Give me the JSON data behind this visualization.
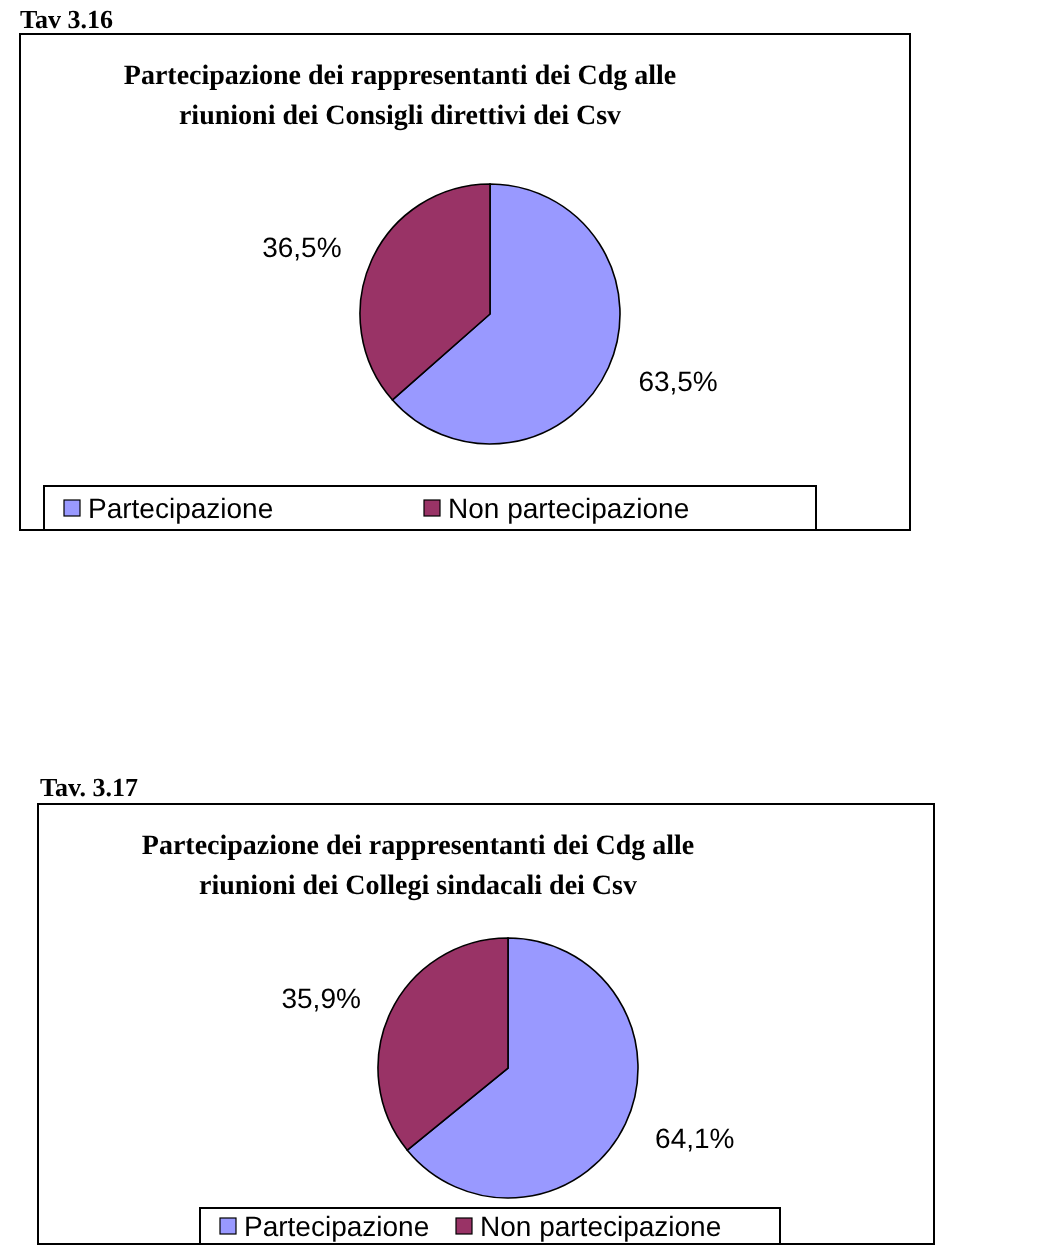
{
  "chart_data": [
    {
      "type": "pie",
      "title": "Partecipazione dei rappresentanti dei Cdg alle\nriunioni dei Consigli direttivi dei Csv",
      "annotations": [
        "Tav 3.16"
      ],
      "categories": [
        "Partecipazione",
        "Non partecipazione"
      ],
      "values": [
        63.5,
        36.5
      ],
      "value_labels": [
        "63,5%",
        "36,5%"
      ],
      "colors": [
        "#9999ff",
        "#993366"
      ],
      "legend": "bottom"
    },
    {
      "type": "pie",
      "title": "Partecipazione dei rappresentanti dei Cdg alle\nriunioni dei Collegi sindacali dei Csv",
      "annotations": [
        "Tav. 3.17"
      ],
      "categories": [
        "Partecipazione",
        "Non partecipazione"
      ],
      "values": [
        64.1,
        35.9
      ],
      "value_labels": [
        "64,1%",
        "35,9%"
      ],
      "colors": [
        "#9999ff",
        "#993366"
      ],
      "legend": "bottom"
    }
  ]
}
